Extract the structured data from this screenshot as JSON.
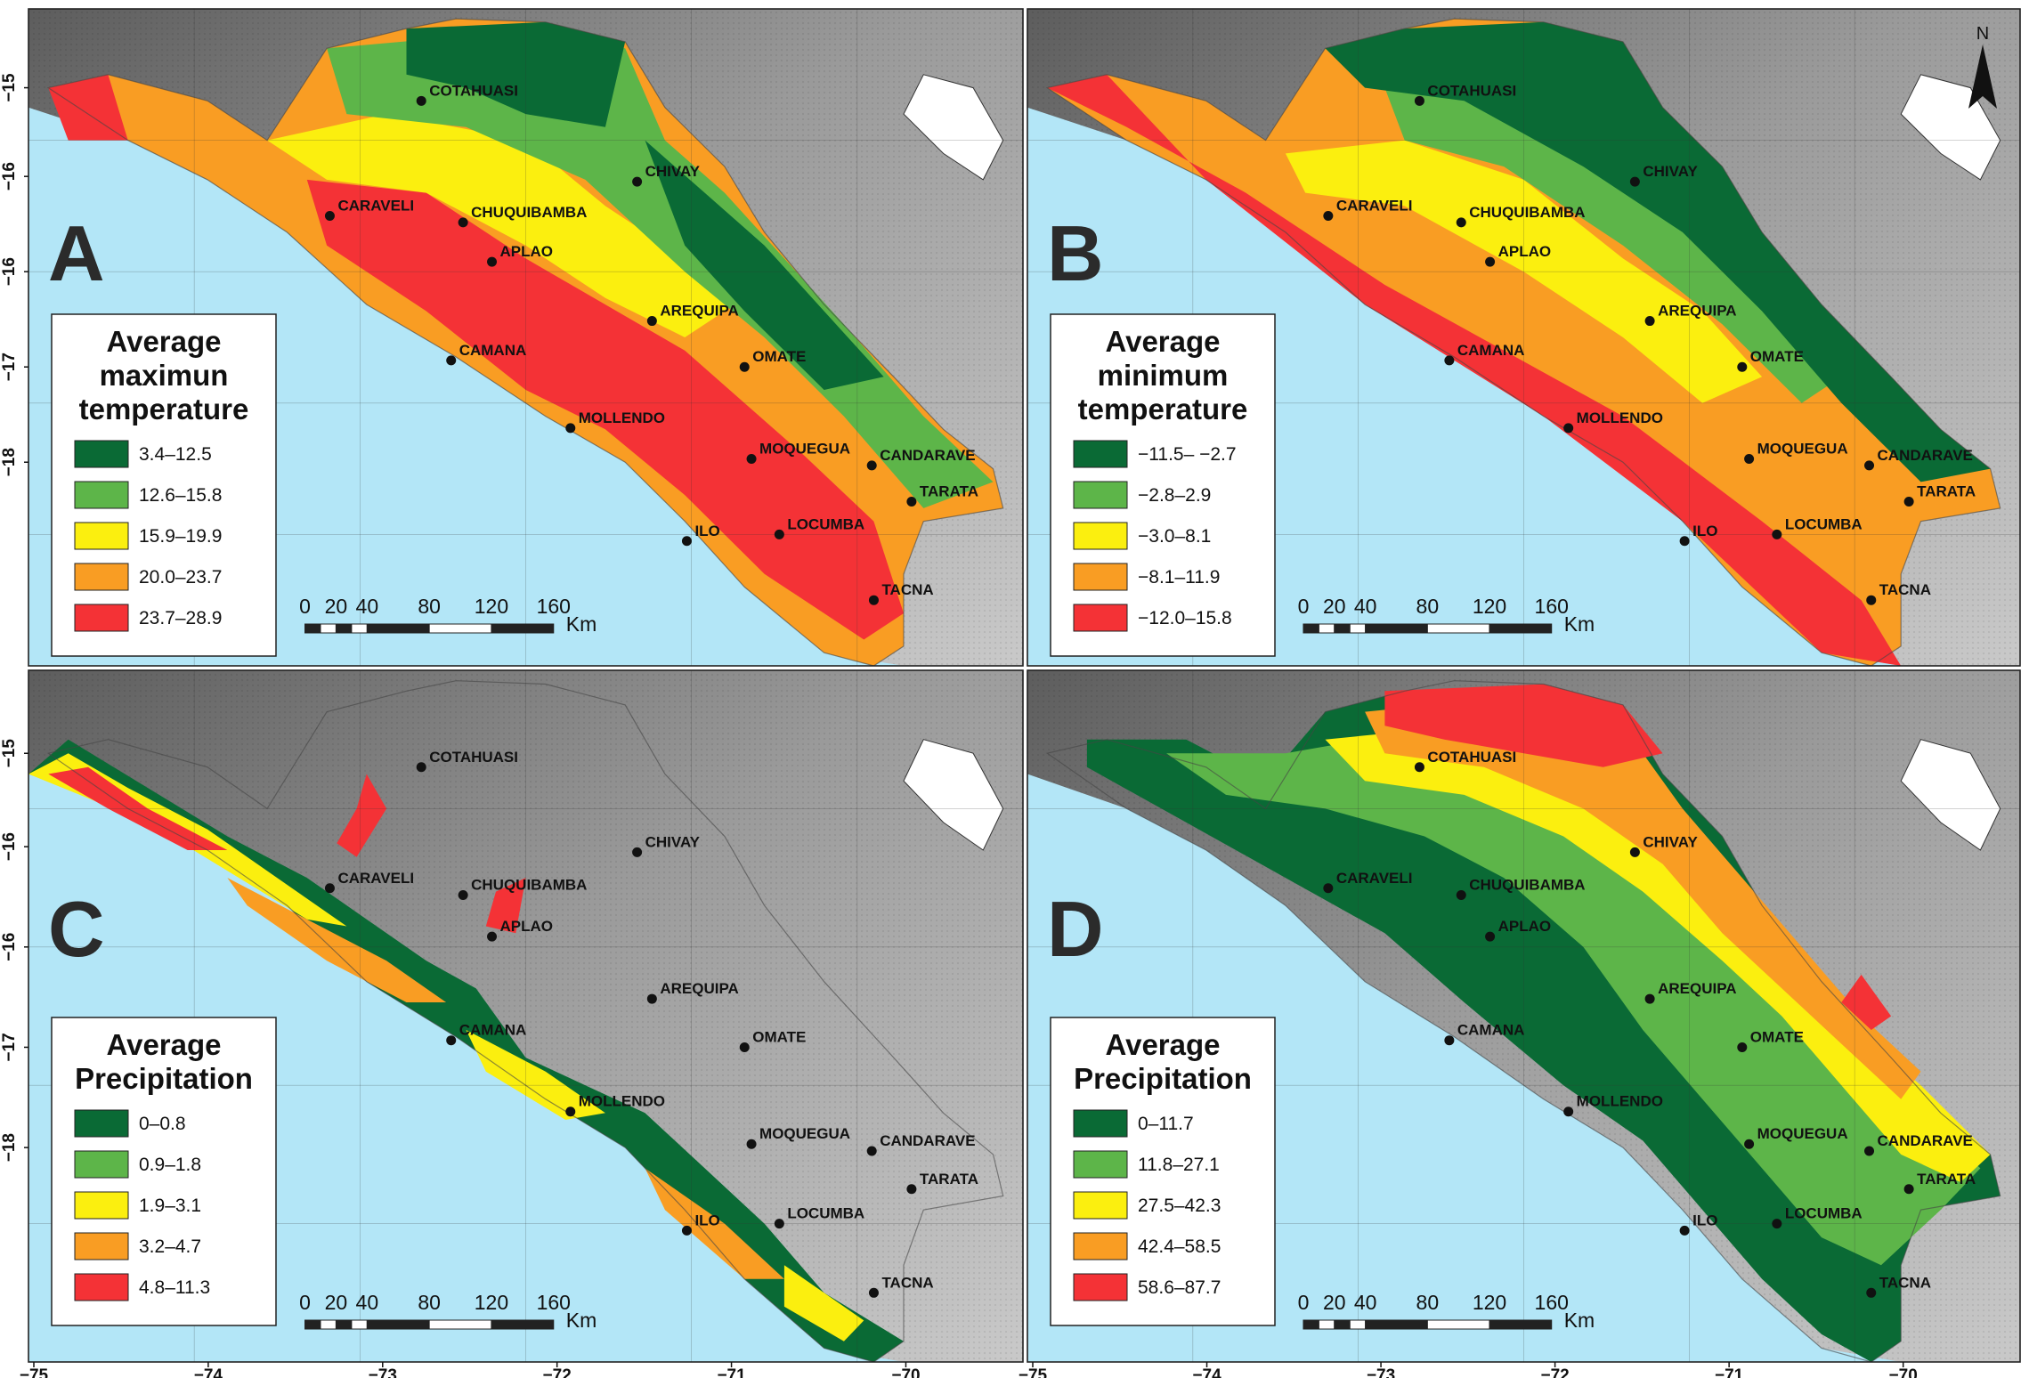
{
  "axes": {
    "x_ticks": [
      "−75",
      "−74",
      "−73",
      "−72",
      "−71",
      "−70"
    ],
    "y_ticks": [
      "−15",
      "−16",
      "−16",
      "−17",
      "−18"
    ]
  },
  "north_label": "N",
  "scale_bar": {
    "ticks": [
      "0",
      "20",
      "40",
      "80",
      "120",
      "160"
    ],
    "unit": "Km"
  },
  "cities": [
    {
      "name": "COTAHUASI"
    },
    {
      "name": "CHIVAY"
    },
    {
      "name": "CARAVELI"
    },
    {
      "name": "CHUQUIBAMBA"
    },
    {
      "name": "APLAO"
    },
    {
      "name": "AREQUIPA"
    },
    {
      "name": "CAMANA"
    },
    {
      "name": "OMATE"
    },
    {
      "name": "MOLLENDO"
    },
    {
      "name": "MOQUEGUA"
    },
    {
      "name": "CANDARAVE"
    },
    {
      "name": "TARATA"
    },
    {
      "name": "ILO"
    },
    {
      "name": "LOCUMBA"
    },
    {
      "name": "TACNA"
    }
  ],
  "panels": [
    {
      "label": "A",
      "legend_title": [
        "Average",
        "maximun",
        "temperature"
      ],
      "classes": [
        {
          "range": "3.4–12.5",
          "color": "#0a6a35"
        },
        {
          "range": "12.6–15.8",
          "color": "#5db549"
        },
        {
          "range": "15.9–19.9",
          "color": "#fbef0f"
        },
        {
          "range": "20.0–23.7",
          "color": "#f99d23"
        },
        {
          "range": "23.7–28.9",
          "color": "#f43236"
        }
      ]
    },
    {
      "label": "B",
      "legend_title": [
        "Average",
        "minimum",
        "temperature"
      ],
      "classes": [
        {
          "range": "−11.5– −2.7",
          "color": "#0a6a35"
        },
        {
          "range": "−2.8–2.9",
          "color": "#5db549"
        },
        {
          "range": "−3.0–8.1",
          "color": "#fbef0f"
        },
        {
          "range": "−8.1–11.9",
          "color": "#f99d23"
        },
        {
          "range": "−12.0–15.8",
          "color": "#f43236"
        }
      ]
    },
    {
      "label": "C",
      "legend_title": [
        "Average",
        "Precipitation"
      ],
      "classes": [
        {
          "range": "0–0.8",
          "color": "#0a6a35"
        },
        {
          "range": "0.9–1.8",
          "color": "#5db549"
        },
        {
          "range": "1.9–3.1",
          "color": "#fbef0f"
        },
        {
          "range": "3.2–4.7",
          "color": "#f99d23"
        },
        {
          "range": "4.8–11.3",
          "color": "#f43236"
        }
      ]
    },
    {
      "label": "D",
      "legend_title": [
        "Average",
        "Precipitation"
      ],
      "classes": [
        {
          "range": "0–11.7",
          "color": "#0a6a35"
        },
        {
          "range": "11.8–27.1",
          "color": "#5db549"
        },
        {
          "range": "27.5–42.3",
          "color": "#fbef0f"
        },
        {
          "range": "42.4–58.5",
          "color": "#f99d23"
        },
        {
          "range": "58.6–87.7",
          "color": "#f43236"
        }
      ]
    }
  ],
  "colors": {
    "ocean": "#b3e6f7",
    "land_dark": "#6f6f6f",
    "land_light": "#c4c4c4",
    "lake": "#ffffff"
  }
}
